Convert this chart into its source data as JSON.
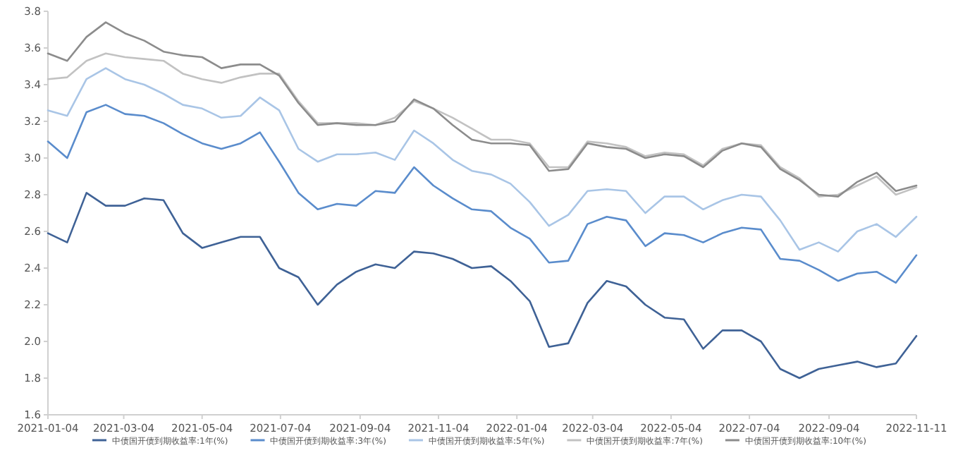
{
  "chart_data": {
    "type": "line",
    "legend": "bottom",
    "x": [
      "2021-01-04",
      "2021-01-19",
      "2021-02-03",
      "2021-02-18",
      "2021-03-05",
      "2021-03-20",
      "2021-04-04",
      "2021-04-19",
      "2021-05-04",
      "2021-05-19",
      "2021-06-03",
      "2021-06-18",
      "2021-07-03",
      "2021-07-18",
      "2021-08-02",
      "2021-08-17",
      "2021-09-01",
      "2021-09-16",
      "2021-10-01",
      "2021-10-16",
      "2021-10-31",
      "2021-11-15",
      "2021-11-30",
      "2021-12-15",
      "2021-12-30",
      "2022-01-14",
      "2022-01-29",
      "2022-02-13",
      "2022-02-28",
      "2022-03-15",
      "2022-03-30",
      "2022-04-14",
      "2022-04-29",
      "2022-05-14",
      "2022-05-29",
      "2022-06-13",
      "2022-06-28",
      "2022-07-13",
      "2022-07-28",
      "2022-08-12",
      "2022-08-27",
      "2022-09-11",
      "2022-09-26",
      "2022-10-11",
      "2022-10-26",
      "2022-11-11"
    ],
    "xlim": [
      "2021-01-04",
      "2022-11-11"
    ],
    "xticks": [
      "2021-01-04",
      "2021-03-04",
      "2021-05-04",
      "2021-07-04",
      "2021-09-04",
      "2021-11-04",
      "2022-01-04",
      "2022-03-04",
      "2022-05-04",
      "2022-07-04",
      "2022-09-04",
      "2022-11-11"
    ],
    "ylim": [
      1.6,
      3.8
    ],
    "yticks": [
      1.6,
      1.8,
      {
        "value": 2,
        "label": "2.0"
      },
      2.2,
      2.4,
      2.6,
      2.8,
      {
        "value": 3,
        "label": "3.0"
      },
      3.2,
      3.4,
      3.6,
      3.8
    ],
    "series": [
      {
        "name": "中债国开债到期收益率:1年(%)",
        "color": "#3f6296",
        "values": [
          2.59,
          2.54,
          2.81,
          2.74,
          2.74,
          2.78,
          2.77,
          2.59,
          2.51,
          2.54,
          2.57,
          2.57,
          2.4,
          2.35,
          2.2,
          2.31,
          2.38,
          2.42,
          2.4,
          2.49,
          2.48,
          2.45,
          2.4,
          2.41,
          2.33,
          2.22,
          1.97,
          1.99,
          2.21,
          2.33,
          2.3,
          2.2,
          2.13,
          2.12,
          1.96,
          2.06,
          2.06,
          2.0,
          1.85,
          1.8,
          1.85,
          1.87,
          1.89,
          1.86,
          1.88,
          2.03
        ]
      },
      {
        "name": "中债国开债到期收益率:3年(%)",
        "color": "#5a8ccc",
        "values": [
          3.09,
          3.0,
          3.25,
          3.29,
          3.24,
          3.23,
          3.19,
          3.13,
          3.08,
          3.05,
          3.08,
          3.14,
          2.98,
          2.81,
          2.72,
          2.75,
          2.74,
          2.82,
          2.81,
          2.95,
          2.85,
          2.78,
          2.72,
          2.71,
          2.62,
          2.56,
          2.43,
          2.44,
          2.64,
          2.68,
          2.66,
          2.52,
          2.59,
          2.58,
          2.54,
          2.59,
          2.62,
          2.61,
          2.45,
          2.44,
          2.39,
          2.33,
          2.37,
          2.38,
          2.32,
          2.47
        ]
      },
      {
        "name": "中债国开债到期收益率:5年(%)",
        "color": "#a9c5e6",
        "values": [
          3.26,
          3.23,
          3.43,
          3.49,
          3.43,
          3.4,
          3.35,
          3.29,
          3.27,
          3.22,
          3.23,
          3.33,
          3.26,
          3.05,
          2.98,
          3.02,
          3.02,
          3.03,
          2.99,
          3.15,
          3.08,
          2.99,
          2.93,
          2.91,
          2.86,
          2.76,
          2.63,
          2.69,
          2.82,
          2.83,
          2.82,
          2.7,
          2.79,
          2.79,
          2.72,
          2.77,
          2.8,
          2.79,
          2.66,
          2.5,
          2.54,
          2.49,
          2.6,
          2.64,
          2.57,
          2.68
        ]
      },
      {
        "name": "中债国开债到期收益率:7年(%)",
        "color": "#c2c2c2",
        "values": [
          3.43,
          3.44,
          3.53,
          3.57,
          3.55,
          3.54,
          3.53,
          3.46,
          3.43,
          3.41,
          3.44,
          3.46,
          3.46,
          3.31,
          3.19,
          3.19,
          3.19,
          3.18,
          3.22,
          3.31,
          3.27,
          3.22,
          3.16,
          3.1,
          3.1,
          3.08,
          2.95,
          2.95,
          3.09,
          3.08,
          3.06,
          3.01,
          3.03,
          3.02,
          2.96,
          3.05,
          3.08,
          3.07,
          2.95,
          2.89,
          2.79,
          2.8,
          2.85,
          2.9,
          2.8,
          2.84
        ]
      },
      {
        "name": "中债国开债到期收益率:10年(%)",
        "color": "#8c8c8c",
        "values": [
          3.57,
          3.53,
          3.66,
          3.74,
          3.68,
          3.64,
          3.58,
          3.56,
          3.55,
          3.49,
          3.51,
          3.51,
          3.45,
          3.3,
          3.18,
          3.19,
          3.18,
          3.18,
          3.2,
          3.32,
          3.27,
          3.18,
          3.1,
          3.08,
          3.08,
          3.07,
          2.93,
          2.94,
          3.08,
          3.06,
          3.05,
          3.0,
          3.02,
          3.01,
          2.95,
          3.04,
          3.08,
          3.06,
          2.94,
          2.88,
          2.8,
          2.79,
          2.87,
          2.92,
          2.82,
          2.85
        ]
      }
    ]
  }
}
